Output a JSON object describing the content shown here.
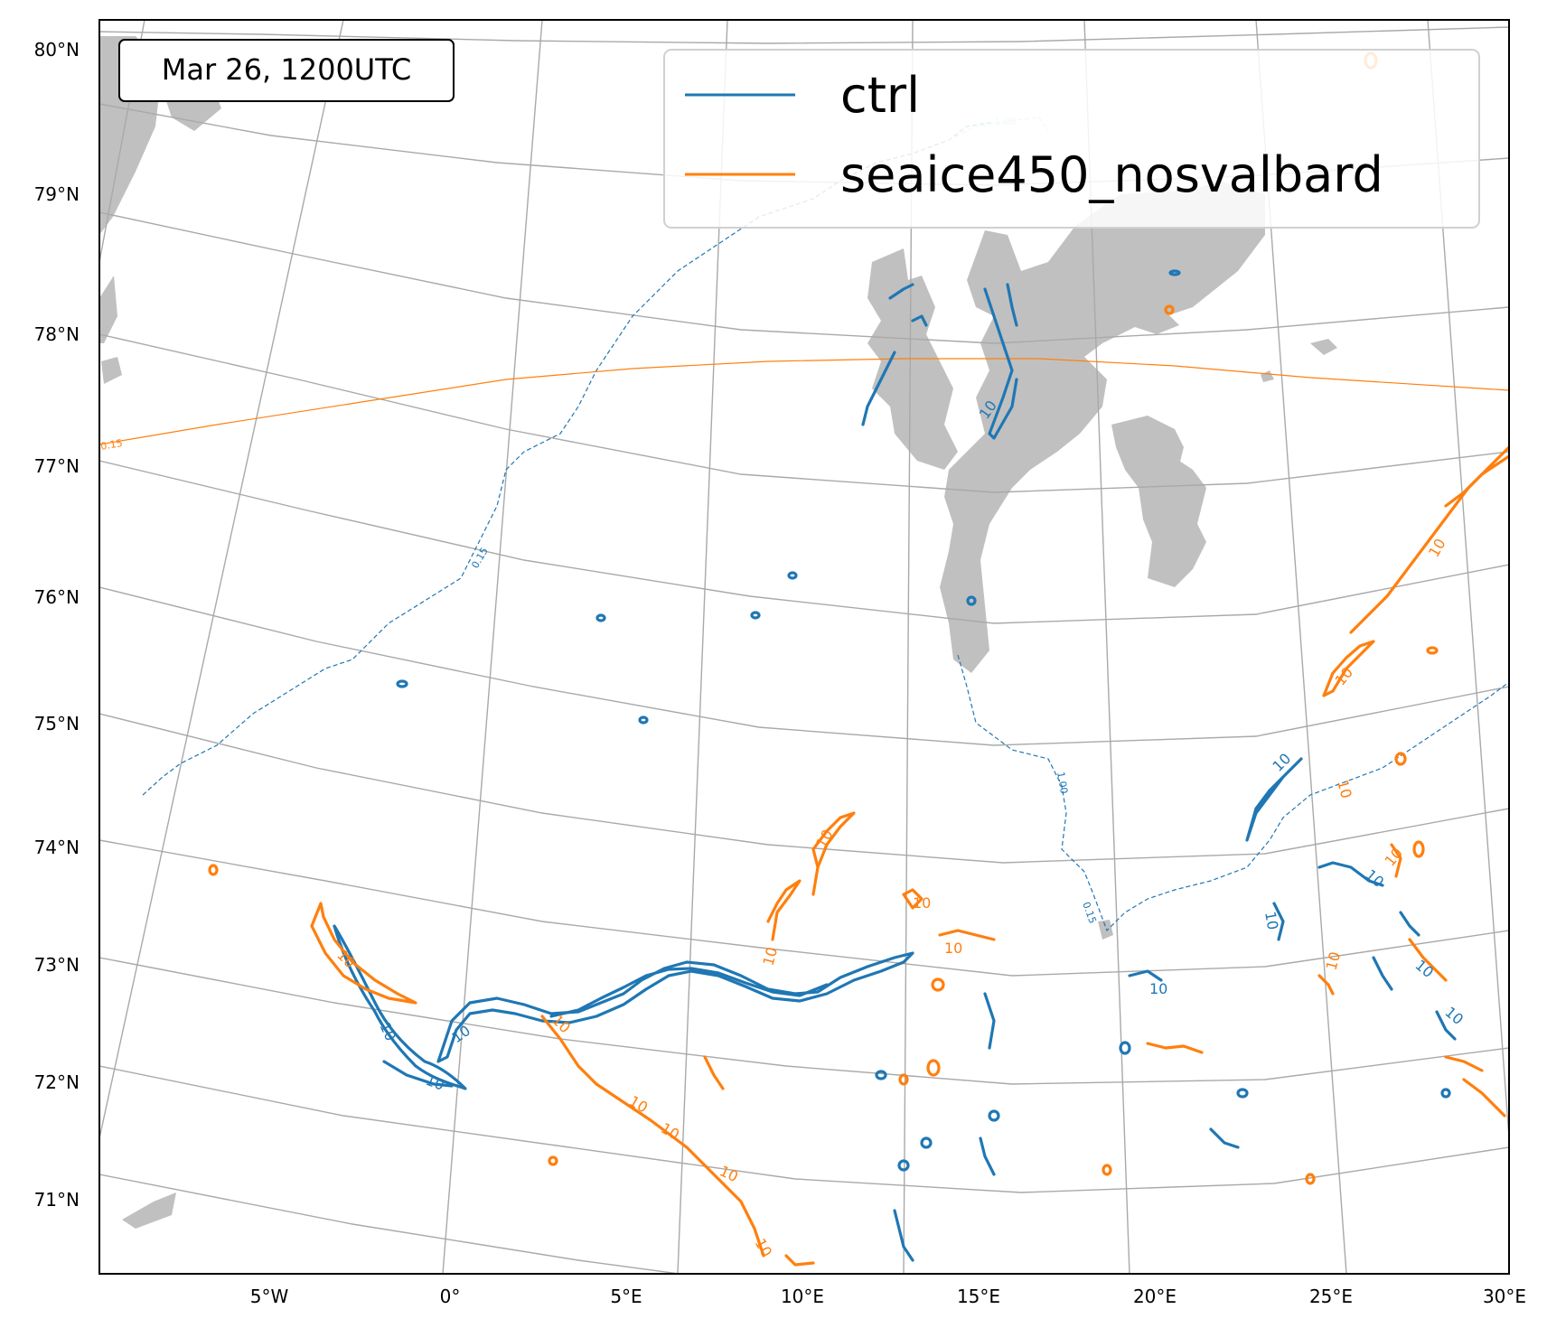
{
  "time_box": {
    "text": "Mar 26, 1200UTC"
  },
  "legend": {
    "location": "upper-right",
    "entries": [
      {
        "name": "ctrl",
        "color": "#1f77b4"
      },
      {
        "name": "seaice450_nosvalbard",
        "color": "#ff7f0e"
      }
    ]
  },
  "map": {
    "projection": "conic / stereographic (curved graticule)",
    "extent": {
      "lon": [
        -10,
        30
      ],
      "lat": [
        70.3,
        80.2
      ]
    },
    "land_color": "#c0c0c0",
    "graticule_color": "#a9a9a9",
    "lat_labels": [
      "80°N",
      "79°N",
      "78°N",
      "77°N",
      "76°N",
      "75°N",
      "74°N",
      "73°N",
      "72°N",
      "71°N"
    ],
    "lon_labels": [
      "5°W",
      "0°",
      "5°E",
      "10°E",
      "15°E",
      "20°E",
      "25°E",
      "30°E"
    ],
    "contour_labels": {
      "ice_ctrl_015": "0.15",
      "ice_ctrl_100": "1.00",
      "ice_exp_015": "0.15",
      "wind": "10"
    }
  }
}
